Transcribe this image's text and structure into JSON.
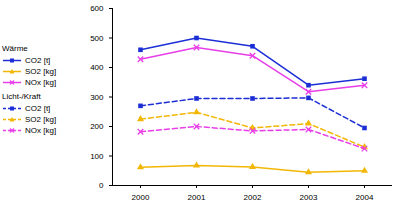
{
  "chart_data": {
    "type": "line",
    "categories": [
      "2000",
      "2001",
      "2002",
      "2003",
      "2004"
    ],
    "series": [
      {
        "group": "Wärme",
        "name": "CO2 [t]",
        "color": "#1c2fd6",
        "marker": "square",
        "line_style": "solid",
        "values": [
          460,
          500,
          472,
          340,
          362
        ]
      },
      {
        "group": "Wärme",
        "name": "SO2 [kg]",
        "color": "#f2b705",
        "marker": "triangle",
        "line_style": "solid",
        "values": [
          62,
          68,
          63,
          45,
          50
        ]
      },
      {
        "group": "Wärme",
        "name": "NOx [kg]",
        "color": "#e83ee8",
        "marker": "x",
        "line_style": "solid",
        "values": [
          428,
          468,
          440,
          318,
          340
        ]
      },
      {
        "group": "Licht-/Kraft",
        "name": "CO2 [t]",
        "color": "#1c2fd6",
        "marker": "square",
        "line_style": "dashed",
        "values": [
          270,
          295,
          295,
          297,
          195
        ]
      },
      {
        "group": "Licht-/Kraft",
        "name": "SO2 [kg]",
        "color": "#f2b705",
        "marker": "triangle",
        "line_style": "dashed",
        "values": [
          225,
          248,
          195,
          210,
          130
        ]
      },
      {
        "group": "Licht-/Kraft",
        "name": "NOx [kg]",
        "color": "#e83ee8",
        "marker": "x",
        "line_style": "dashed",
        "values": [
          182,
          200,
          185,
          190,
          125
        ]
      }
    ],
    "ylim": [
      0,
      600
    ],
    "yticks": [
      0,
      100,
      200,
      300,
      400,
      500,
      600
    ],
    "grid": false,
    "legend": "left"
  }
}
